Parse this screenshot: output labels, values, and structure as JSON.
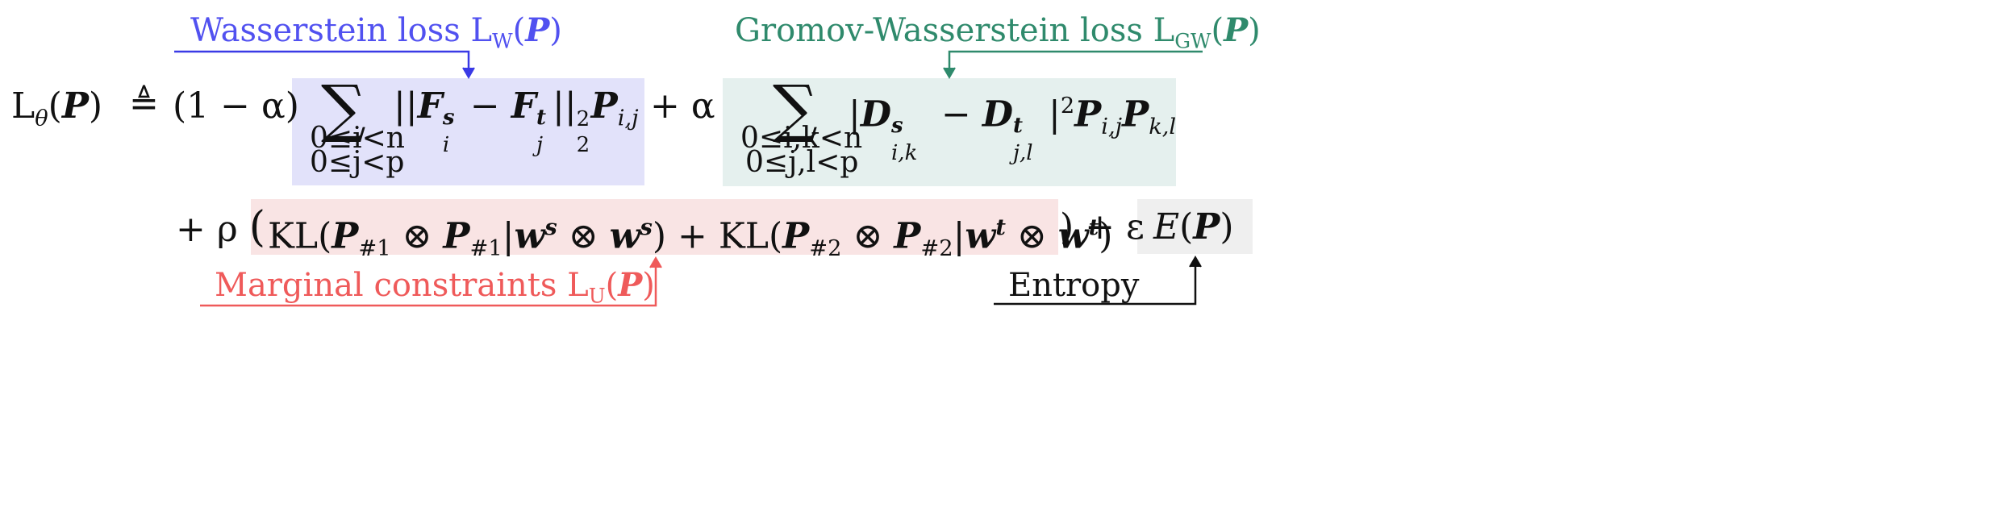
{
  "annotations": {
    "wasserstein": "Wasserstein loss L",
    "wasserstein_sub": "W",
    "gromov": "Gromov-Wasserstein loss L",
    "gromov_sub": "GW",
    "marginal": "Marginal constraints L",
    "marginal_sub": "U",
    "entropy": "Entropy"
  },
  "colors": {
    "wasserstein_box": "#e2e2fa",
    "gromov_box": "#e5f0ee",
    "marginal_box": "#f9e4e4",
    "entropy_box": "#efefef",
    "blue": "#5151f0",
    "green": "#2f8a6c",
    "red": "#ef5a5a"
  },
  "formula": {
    "lhs": "L",
    "lhs_sub": "θ",
    "P": "P",
    "defeq": "≜",
    "one_minus_alpha": "(1 − α)",
    "wasserstein_lim1": "0≤i<n",
    "wasserstein_lim2": "0≤j<p",
    "gromov_lim1": "0≤i,k<n",
    "gromov_lim2": "0≤j,l<p",
    "plus_alpha": "+ α",
    "plus_rho": "+ ρ",
    "plus_eps": ") + ε",
    "kl": "KL"
  }
}
